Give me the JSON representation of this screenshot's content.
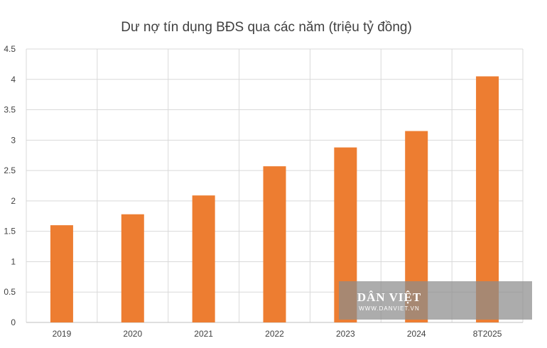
{
  "chart_data": {
    "type": "bar",
    "title": "Dư nợ tín dụng BĐS qua các năm (triệu tỷ đồng)",
    "categories": [
      "2019",
      "2020",
      "2021",
      "2022",
      "2023",
      "2024",
      "8T2025"
    ],
    "values": [
      1.6,
      1.78,
      2.09,
      2.57,
      2.88,
      3.15,
      4.05
    ],
    "ylim": [
      0,
      4.5
    ],
    "yticks": [
      "0",
      "0.5",
      "1",
      "1.5",
      "2",
      "2.5",
      "3",
      "3.5",
      "4",
      "4.5"
    ],
    "grid": true,
    "bar_color": "#ED7D31",
    "grid_color": "#D9D9D9"
  },
  "watermark": {
    "brand": "DÂN VIỆT",
    "url": "WWW.DANVIET.VN"
  }
}
